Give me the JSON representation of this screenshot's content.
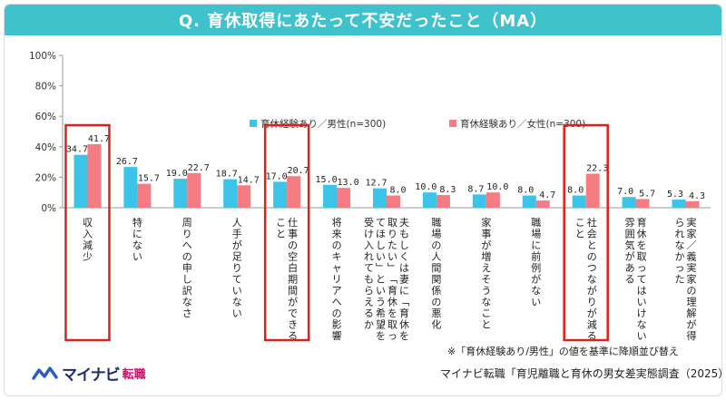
{
  "title": "Q. 育休取得にあたって不安だったこと（MA）",
  "note": "※「育休経験あり/男性」の値を基準に降順並び替え",
  "source": "マイナビ転職「育児離職と育休の男女差実態調査（2025）」",
  "logo": {
    "main": "マイナビ",
    "sub": "転職",
    "icon": "mynavi-logo-icon"
  },
  "colors": {
    "title_bg": "#3fc2cc",
    "male": "#3cc3e8",
    "female": "#f47c82",
    "highlight": "#e0201b",
    "axis": "#999999",
    "grid": "#d9d9d9"
  },
  "highlighted_categories": [
    "収入減少",
    "仕事の空白期間ができること",
    "社会とのつながりが減ること"
  ],
  "chart_data": {
    "type": "bar",
    "title": "Q. 育休取得にあたって不安だったこと（MA）",
    "xlabel": "",
    "ylabel": "",
    "ylim": [
      0,
      100
    ],
    "yticks": [
      "0%",
      "20%",
      "40%",
      "60%",
      "80%",
      "100%"
    ],
    "grid": false,
    "legend_position": "top-right",
    "categories": [
      "収入減少",
      "特にない",
      "周りへの申し訳なさ",
      "人手が足りていない",
      "仕事の空白期間ができること",
      "将来のキャリアへの影響",
      "夫もしくは妻に「育休を取りたい」「育休を取ってほしい」という希望を受け入れてもらえるか",
      "職場の人間関係の悪化",
      "家事が増えそうなこと",
      "職場に前例がない",
      "社会とのつながりが減ること",
      "育休を取ってはいけない雰囲気がある",
      "実家／義実家の理解が得られなかった"
    ],
    "series": [
      {
        "name": "育休経験あり／男性(n=300)",
        "values": [
          34.7,
          26.7,
          19.0,
          18.7,
          17.0,
          15.0,
          12.7,
          10.0,
          8.7,
          8.0,
          8.0,
          7.0,
          5.3
        ]
      },
      {
        "name": "育休経験あり／女性(n=300)",
        "values": [
          41.7,
          15.7,
          22.7,
          14.7,
          20.7,
          13.0,
          8.0,
          8.3,
          10.0,
          4.7,
          22.3,
          5.7,
          4.3
        ]
      }
    ]
  }
}
